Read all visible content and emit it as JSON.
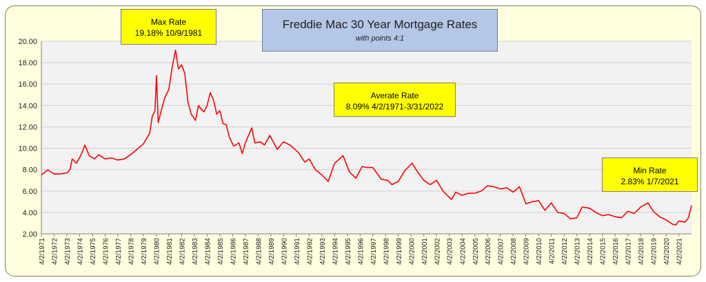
{
  "chart_data": {
    "type": "line",
    "title": "Freddie Mac 30 Year Mortgage Rates",
    "subtitle": "with points 4:1",
    "xlabel": "",
    "ylabel": "",
    "ylim": [
      2.0,
      20.0
    ],
    "yticks": [
      "2.00",
      "4.00",
      "6.00",
      "8.00",
      "10.00",
      "12.00",
      "14.00",
      "16.00",
      "18.00",
      "20.00"
    ],
    "xlim": [
      "1971-04-02",
      "2022-03-31"
    ],
    "xticks": [
      "4/2/1971",
      "4/2/1972",
      "4/2/1973",
      "4/2/1974",
      "4/2/1975",
      "4/2/1976",
      "4/2/1977",
      "4/2/1978",
      "4/2/1979",
      "4/2/1980",
      "4/2/1981",
      "4/2/1982",
      "4/2/1983",
      "4/2/1984",
      "4/2/1985",
      "4/2/1986",
      "4/2/1987",
      "4/2/1988",
      "4/2/1989",
      "4/2/1990",
      "4/2/1991",
      "4/2/1992",
      "4/2/1993",
      "4/2/1994",
      "4/2/1995",
      "4/2/1996",
      "4/2/1997",
      "4/2/1998",
      "4/2/1999",
      "4/2/2000",
      "4/2/2001",
      "4/2/2002",
      "4/2/2003",
      "4/2/2004",
      "4/2/2005",
      "4/2/2006",
      "4/2/2007",
      "4/2/2008",
      "4/2/2009",
      "4/2/2010",
      "4/2/2011",
      "4/2/2012",
      "4/2/2013",
      "4/2/2014",
      "4/2/2015",
      "4/2/2016",
      "4/2/2017",
      "4/2/2018",
      "4/2/2019",
      "4/2/2020",
      "4/2/2021"
    ],
    "grid": true,
    "legend": "none",
    "series": [
      {
        "color": "#ff0000",
        "points": [
          [
            "1971-04-02",
            7.5
          ],
          [
            "1971-10-01",
            7.98
          ],
          [
            "1972-04-01",
            7.6
          ],
          [
            "1972-10-01",
            7.6
          ],
          [
            "1973-04-01",
            7.7
          ],
          [
            "1973-07-01",
            8.0
          ],
          [
            "1973-09-01",
            9.0
          ],
          [
            "1974-01-01",
            8.6
          ],
          [
            "1974-05-01",
            9.3
          ],
          [
            "1974-09-01",
            10.3
          ],
          [
            "1975-01-01",
            9.3
          ],
          [
            "1975-06-01",
            9.0
          ],
          [
            "1975-10-01",
            9.4
          ],
          [
            "1976-04-01",
            9.0
          ],
          [
            "1976-10-01",
            9.1
          ],
          [
            "1977-04-01",
            8.9
          ],
          [
            "1977-10-01",
            9.0
          ],
          [
            "1978-04-01",
            9.4
          ],
          [
            "1978-10-01",
            9.9
          ],
          [
            "1979-04-01",
            10.4
          ],
          [
            "1979-10-01",
            11.4
          ],
          [
            "1979-12-15",
            13.0
          ],
          [
            "1980-03-01",
            13.5
          ],
          [
            "1980-04-10",
            16.8
          ],
          [
            "1980-06-01",
            12.4
          ],
          [
            "1980-09-01",
            13.6
          ],
          [
            "1980-12-01",
            14.7
          ],
          [
            "1981-04-01",
            15.5
          ],
          [
            "1981-07-01",
            17.5
          ],
          [
            "1981-10-09",
            19.18
          ],
          [
            "1982-01-01",
            17.4
          ],
          [
            "1982-04-01",
            17.8
          ],
          [
            "1982-07-01",
            17.0
          ],
          [
            "1982-10-01",
            14.3
          ],
          [
            "1983-01-01",
            13.2
          ],
          [
            "1983-05-01",
            12.6
          ],
          [
            "1983-08-01",
            14.0
          ],
          [
            "1983-10-01",
            13.7
          ],
          [
            "1984-01-01",
            13.4
          ],
          [
            "1984-04-01",
            14.0
          ],
          [
            "1984-07-01",
            15.2
          ],
          [
            "1984-10-01",
            14.5
          ],
          [
            "1985-01-01",
            13.2
          ],
          [
            "1985-04-01",
            13.5
          ],
          [
            "1985-07-01",
            12.3
          ],
          [
            "1985-10-01",
            12.2
          ],
          [
            "1986-01-01",
            11.0
          ],
          [
            "1986-05-01",
            10.2
          ],
          [
            "1986-10-01",
            10.5
          ],
          [
            "1987-01-01",
            9.5
          ],
          [
            "1987-04-01",
            10.5
          ],
          [
            "1987-10-01",
            11.9
          ],
          [
            "1988-01-01",
            10.5
          ],
          [
            "1988-06-01",
            10.6
          ],
          [
            "1988-10-01",
            10.3
          ],
          [
            "1989-03-01",
            11.2
          ],
          [
            "1989-10-01",
            9.9
          ],
          [
            "1990-04-01",
            10.6
          ],
          [
            "1990-10-01",
            10.3
          ],
          [
            "1991-06-01",
            9.6
          ],
          [
            "1991-12-01",
            8.7
          ],
          [
            "1992-04-01",
            9.0
          ],
          [
            "1992-10-01",
            8.0
          ],
          [
            "1993-04-01",
            7.5
          ],
          [
            "1993-10-01",
            6.9
          ],
          [
            "1994-04-01",
            8.6
          ],
          [
            "1994-12-01",
            9.3
          ],
          [
            "1995-06-01",
            7.8
          ],
          [
            "1995-12-01",
            7.2
          ],
          [
            "1996-06-01",
            8.3
          ],
          [
            "1996-10-01",
            8.2
          ],
          [
            "1997-04-01",
            8.2
          ],
          [
            "1997-12-01",
            7.1
          ],
          [
            "1998-06-01",
            7.0
          ],
          [
            "1998-10-01",
            6.6
          ],
          [
            "1999-04-01",
            6.9
          ],
          [
            "1999-10-01",
            7.9
          ],
          [
            "2000-05-01",
            8.6
          ],
          [
            "2000-10-01",
            7.8
          ],
          [
            "2001-04-01",
            7.0
          ],
          [
            "2001-10-01",
            6.6
          ],
          [
            "2002-04-01",
            7.0
          ],
          [
            "2002-10-01",
            6.0
          ],
          [
            "2003-06-01",
            5.2
          ],
          [
            "2003-10-01",
            5.9
          ],
          [
            "2004-04-01",
            5.6
          ],
          [
            "2004-10-01",
            5.8
          ],
          [
            "2005-04-01",
            5.8
          ],
          [
            "2005-10-01",
            6.0
          ],
          [
            "2006-04-01",
            6.5
          ],
          [
            "2006-10-01",
            6.4
          ],
          [
            "2007-04-01",
            6.2
          ],
          [
            "2007-10-01",
            6.3
          ],
          [
            "2008-04-01",
            5.9
          ],
          [
            "2008-10-01",
            6.4
          ],
          [
            "2009-04-01",
            4.8
          ],
          [
            "2009-10-01",
            5.0
          ],
          [
            "2010-04-01",
            5.1
          ],
          [
            "2010-10-01",
            4.2
          ],
          [
            "2011-04-01",
            4.9
          ],
          [
            "2011-10-01",
            4.0
          ],
          [
            "2012-04-01",
            3.9
          ],
          [
            "2012-10-01",
            3.4
          ],
          [
            "2013-04-01",
            3.5
          ],
          [
            "2013-09-01",
            4.5
          ],
          [
            "2014-04-01",
            4.4
          ],
          [
            "2014-10-01",
            4.0
          ],
          [
            "2015-04-01",
            3.7
          ],
          [
            "2015-10-01",
            3.8
          ],
          [
            "2016-04-01",
            3.6
          ],
          [
            "2016-10-01",
            3.5
          ],
          [
            "2017-04-01",
            4.1
          ],
          [
            "2017-10-01",
            3.9
          ],
          [
            "2018-04-01",
            4.5
          ],
          [
            "2018-11-01",
            4.9
          ],
          [
            "2019-04-01",
            4.1
          ],
          [
            "2019-10-01",
            3.6
          ],
          [
            "2020-04-01",
            3.3
          ],
          [
            "2020-10-01",
            2.9
          ],
          [
            "2021-01-07",
            2.83
          ],
          [
            "2021-04-01",
            3.2
          ],
          [
            "2021-10-01",
            3.1
          ],
          [
            "2022-01-01",
            3.5
          ],
          [
            "2022-03-31",
            4.67
          ]
        ]
      }
    ],
    "annotations": [
      {
        "id": "max",
        "title": "Max Rate",
        "text": "19.18% 10/9/1981"
      },
      {
        "id": "avg",
        "title": "Averate Rate",
        "text": "8.09% 4/2/1971-3/31/2022"
      },
      {
        "id": "min",
        "title": "Min Rate",
        "text": "2.83% 1/7/2021"
      }
    ]
  }
}
